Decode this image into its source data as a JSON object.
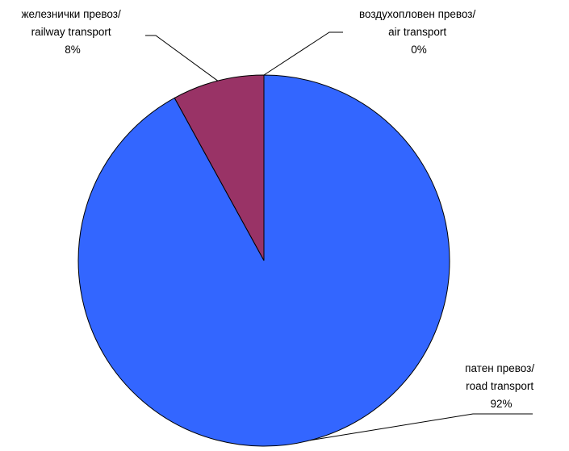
{
  "chart_data": {
    "type": "pie",
    "slices": [
      {
        "label_lines": [
          "патен превоз/",
          "road transport"
        ],
        "percent_label": "92%",
        "value": 92,
        "color": "#3366ff"
      },
      {
        "label_lines": [
          "железнички превоз/",
          "railway transport"
        ],
        "percent_label": "8%",
        "value": 8,
        "color": "#993366"
      },
      {
        "label_lines": [
          "воздухопловен превоз/",
          "air transport"
        ],
        "percent_label": "0%",
        "value": 0,
        "color": "#ffffcc"
      }
    ],
    "start_angle": "12 o'clock",
    "direction": "counter-clockwise",
    "legend": "none",
    "data_labels": "outside-with-leader-lines"
  }
}
